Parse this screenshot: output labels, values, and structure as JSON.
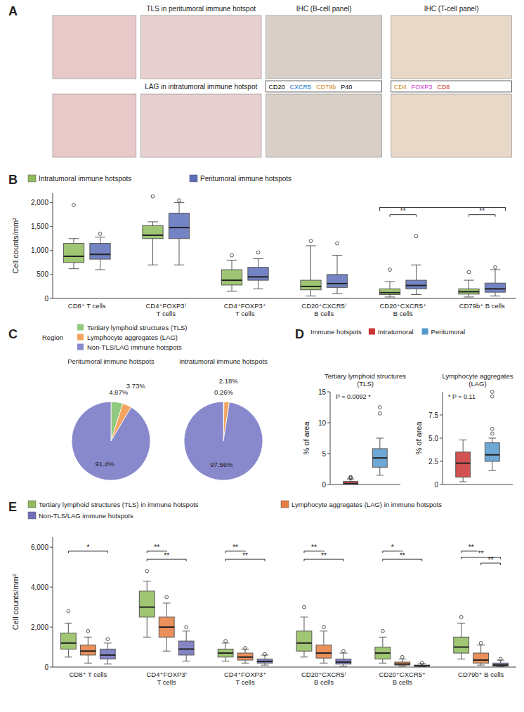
{
  "chart_data": [
    {
      "type": "image_panel",
      "label": "A",
      "titles": [
        "TLS in peritumoral immune hotspot",
        "IHC (B-cell panel)",
        "IHC (T-cell panel)",
        "LAG in intratumoral immune hotspot"
      ],
      "image_colors": [
        "#e8c8c8",
        "#e8d0d0",
        "#d8d0c8",
        "#e8d8c8"
      ],
      "stain_legends": [
        [
          {
            "name": "CD20"
          },
          {
            "name": "CXCR5",
            "color": "#2277cc"
          },
          {
            "name": "CD79b",
            "color": "#cc8822"
          },
          {
            "name": "P40"
          }
        ],
        [
          {
            "name": "CD4",
            "color": "#cc8822"
          },
          {
            "name": "FOXP3",
            "color": "#cc33cc"
          },
          {
            "name": "CD8",
            "color": "#cc3333"
          }
        ]
      ]
    },
    {
      "type": "box",
      "label": "B",
      "categories": [
        "CD8⁺ T cells",
        "CD4⁺FOXP3⁾\nT cells",
        "CD4⁺FOXP3⁺\nT cells",
        "CD20⁺CXCR5⁾\nB cells",
        "CD20⁺CXCR5⁺\nB cells",
        "CD79b⁺ B cells"
      ],
      "ylabel": "Cell counts/mm²",
      "ylim": [
        0,
        2200
      ],
      "yticks": [
        0,
        500,
        {
          "value": 1000,
          "label": "1,000"
        },
        {
          "value": 1500,
          "label": "1,500"
        },
        {
          "value": 2000,
          "label": "2,000"
        }
      ],
      "legend": "upper left",
      "series": [
        {
          "name": "Intratumoral immune hotspots",
          "color": "#8fbc5a",
          "whisker_low": [
            620,
            700,
            150,
            50,
            30,
            30
          ],
          "q1": [
            750,
            1250,
            280,
            180,
            80,
            90
          ],
          "median": [
            880,
            1320,
            380,
            250,
            120,
            140
          ],
          "q3": [
            1150,
            1520,
            600,
            380,
            200,
            200
          ],
          "whisker_high": [
            1250,
            1600,
            800,
            1100,
            350,
            380
          ],
          "outliers": [
            1950,
            2130,
            900,
            1200,
            600,
            550
          ]
        },
        {
          "name": "Peritumoral immune hotspots",
          "color": "#5b6db8",
          "whisker_low": [
            600,
            700,
            200,
            100,
            80,
            50
          ],
          "q1": [
            820,
            1250,
            380,
            230,
            200,
            130
          ],
          "median": [
            920,
            1480,
            450,
            310,
            270,
            200
          ],
          "q3": [
            1150,
            1780,
            650,
            500,
            380,
            320
          ],
          "whisker_high": [
            1280,
            2000,
            830,
            900,
            700,
            600
          ],
          "outliers": [
            1350,
            2050,
            960,
            1150,
            1300,
            650
          ]
        }
      ],
      "significance": [
        {
          "label": "**",
          "category": 4,
          "series": [
            0,
            1
          ],
          "y": 1750
        },
        {
          "label": "**",
          "category": 5,
          "series": [
            0,
            1
          ],
          "y": 1750
        }
      ],
      "group_brackets": [
        {
          "categories": [
            4,
            5
          ],
          "y": 1900
        }
      ]
    },
    {
      "type": "pie",
      "label": "C",
      "legend_title": "Region",
      "categories": [
        "Tertiary lymphoid structures (TLS)",
        "Lymphocyte aggregates (LAG)",
        "Non-TLS/LAG immune hotspots"
      ],
      "colors": [
        "#90c97f",
        "#f4a460",
        "#8888cc"
      ],
      "data_labels": true,
      "series": [
        {
          "name": "Peritumoral immune hotspots",
          "values": [
            4.87,
            3.73,
            91.4
          ],
          "value_labels": [
            "4.87%",
            "3.73%",
            "91.4%"
          ]
        },
        {
          "name": "Intratumoral immune hotspots",
          "values": [
            0.26,
            2.18,
            97.56
          ],
          "value_labels": [
            "0.26%",
            "2.18%",
            "97.56%"
          ]
        }
      ]
    },
    {
      "type": "box",
      "label": "D",
      "legend_title": "Immune hotspots",
      "title": "Tertiary lymphoid structures\n(TLS)",
      "ylabel": "% of area",
      "ylim": [
        0,
        15
      ],
      "yticks": [
        0,
        5,
        10,
        15
      ],
      "tick_labels": "y",
      "annotations": [
        "P = 0.0092 *"
      ],
      "series": [
        {
          "name": "Intratumoral",
          "color": "#cc3333",
          "whisker_low": 0.02,
          "q1": 0.05,
          "median": 0.15,
          "q3": 0.5,
          "whisker_high": 0.9,
          "outliers": [
            1.0,
            1.1,
            1.2
          ]
        },
        {
          "name": "Peritumoral",
          "color": "#5599cc",
          "whisker_low": 1.5,
          "q1": 2.8,
          "median": 4.3,
          "q3": 5.8,
          "whisker_high": 7.5,
          "outliers": [
            11.5,
            12.5
          ]
        }
      ]
    },
    {
      "type": "box",
      "title": "Lymphocyte aggregates\n(LAG)",
      "ylabel": "% of area",
      "ylim": [
        0,
        10
      ],
      "yticks": [
        0,
        2.5,
        {
          "value": 5.0,
          "label": "5.0"
        },
        7.5
      ],
      "tick_labels": "y",
      "annotations": [
        "* P = 0.11"
      ],
      "series": [
        {
          "color": "#cc3333",
          "whisker_low": 0.3,
          "q1": 0.8,
          "median": 2.3,
          "q3": 3.5,
          "whisker_high": 4.8,
          "outliers": []
        },
        {
          "color": "#5599cc",
          "whisker_low": 1.5,
          "q1": 2.5,
          "median": 3.2,
          "q3": 4.5,
          "whisker_high": 5.0,
          "outliers": [
            5.5,
            6.0,
            9.5,
            10.0
          ]
        }
      ]
    },
    {
      "type": "box",
      "label": "E",
      "categories": [
        "CD8⁺ T cells",
        "CD4⁺FOXP3⁾\nT cells",
        "CD4⁺FOXP3⁺\nT cells",
        "CD20⁺CXCR5⁾\nB cells",
        "CD20⁺CXCR5⁺\nB cells",
        "CD79b⁺ B cells"
      ],
      "ylabel": "Cell counts/mm²",
      "ylim": [
        0,
        6500
      ],
      "yticks": [
        0,
        {
          "value": 2000,
          "label": "2,000"
        },
        {
          "value": 4000,
          "label": "4,000"
        },
        {
          "value": 6000,
          "label": "6,000"
        }
      ],
      "legend": "upper left",
      "series": [
        {
          "name": "Tertiary lymphoid structures (TLS) in immune hotspots",
          "color": "#8fbc5a",
          "whisker_low": [
            500,
            1500,
            300,
            500,
            200,
            400
          ],
          "q1": [
            900,
            2500,
            500,
            800,
            400,
            700
          ],
          "median": [
            1200,
            3000,
            700,
            1200,
            700,
            1000
          ],
          "q3": [
            1700,
            3800,
            900,
            1800,
            1000,
            1500
          ],
          "whisker_high": [
            2200,
            4300,
            1200,
            2500,
            1500,
            2200
          ],
          "outliers": [
            2800,
            4800,
            1300,
            3000,
            1800,
            2500
          ]
        },
        {
          "name": "Lymphocyte aggregates (LAG) in immune hotspots",
          "color": "#e87d3e",
          "whisker_low": [
            200,
            800,
            200,
            200,
            50,
            100
          ],
          "q1": [
            600,
            1500,
            350,
            450,
            100,
            200
          ],
          "median": [
            800,
            2000,
            500,
            700,
            150,
            350
          ],
          "q3": [
            1100,
            2500,
            700,
            1100,
            250,
            700
          ],
          "whisker_high": [
            1500,
            3200,
            900,
            1800,
            400,
            1100
          ],
          "outliers": [
            1800,
            3500,
            950,
            2000,
            500,
            1200
          ]
        },
        {
          "name": "Non-TLS/LAG immune hotspots",
          "color": "#7070bb",
          "whisker_low": [
            150,
            300,
            100,
            50,
            20,
            20
          ],
          "q1": [
            400,
            600,
            200,
            150,
            40,
            50
          ],
          "median": [
            600,
            900,
            280,
            250,
            60,
            100
          ],
          "q3": [
            900,
            1300,
            400,
            400,
            100,
            200
          ],
          "whisker_high": [
            1200,
            1800,
            600,
            700,
            180,
            350
          ],
          "outliers": [
            1400,
            2000,
            650,
            800,
            200,
            400
          ]
        }
      ],
      "significance": [
        {
          "label": "*",
          "category": 0,
          "series": [
            0,
            2
          ],
          "y": 5800
        },
        {
          "label": "**",
          "category": 1,
          "series": [
            0,
            1
          ],
          "y": 5800
        },
        {
          "label": "**",
          "category": 1,
          "series": [
            0,
            2
          ],
          "y": 5400
        },
        {
          "label": "**",
          "category": 2,
          "series": [
            0,
            1
          ],
          "y": 5800
        },
        {
          "label": "**",
          "category": 2,
          "series": [
            0,
            2
          ],
          "y": 5400
        },
        {
          "label": "**",
          "category": 3,
          "series": [
            0,
            1
          ],
          "y": 5800
        },
        {
          "label": "**",
          "category": 3,
          "series": [
            0,
            2
          ],
          "y": 5400
        },
        {
          "label": "*",
          "category": 4,
          "series": [
            0,
            1
          ],
          "y": 5800
        },
        {
          "label": "**",
          "category": 4,
          "series": [
            0,
            2
          ],
          "y": 5400
        },
        {
          "label": "**",
          "category": 5,
          "series": [
            0,
            1
          ],
          "y": 5800
        },
        {
          "label": "**",
          "category": 5,
          "series": [
            1,
            2
          ],
          "y": 5200
        },
        {
          "label": "**",
          "category": 5,
          "series": [
            0,
            2
          ],
          "y": 5500
        }
      ]
    }
  ]
}
